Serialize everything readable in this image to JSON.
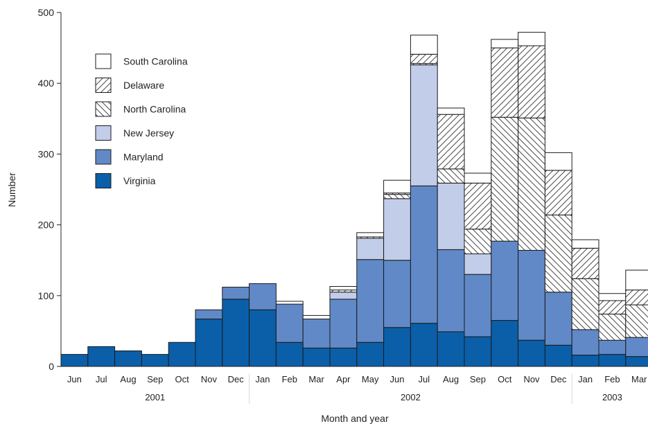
{
  "chart_data": {
    "type": "bar",
    "stacked": true,
    "ylabel": "Number",
    "xlabel": "Month and year",
    "ylim": [
      0,
      500
    ],
    "yticks": [
      0,
      100,
      200,
      300,
      400,
      500
    ],
    "grid": false,
    "legend_position": "top-left",
    "categories": [
      "Jun",
      "Jul",
      "Aug",
      "Sep",
      "Oct",
      "Nov",
      "Dec",
      "Jan",
      "Feb",
      "Mar",
      "Apr",
      "May",
      "Jun",
      "Jul",
      "Aug",
      "Sep",
      "Oct",
      "Nov",
      "Dec",
      "Jan",
      "Feb",
      "Mar"
    ],
    "year_groups": [
      {
        "label": "2001",
        "start": 0,
        "end": 6
      },
      {
        "label": "2002",
        "start": 7,
        "end": 18
      },
      {
        "label": "2003",
        "start": 19,
        "end": 21
      }
    ],
    "series": [
      {
        "name": "Virginia",
        "color": "#0a5fa8",
        "pattern": "solid",
        "values": [
          17,
          28,
          22,
          17,
          34,
          67,
          95,
          80,
          34,
          26,
          26,
          34,
          55,
          61,
          49,
          42,
          65,
          37,
          30,
          16,
          17,
          14
        ]
      },
      {
        "name": "Maryland",
        "color": "#6189c7",
        "pattern": "solid",
        "values": [
          0,
          0,
          0,
          0,
          0,
          13,
          17,
          37,
          54,
          41,
          69,
          117,
          95,
          194,
          116,
          88,
          112,
          127,
          75,
          36,
          20,
          27
        ]
      },
      {
        "name": "New Jersey",
        "color": "#c2cde9",
        "pattern": "solid",
        "values": [
          0,
          0,
          0,
          0,
          0,
          0,
          0,
          0,
          0,
          0,
          10,
          30,
          87,
          171,
          94,
          29,
          0,
          0,
          0,
          0,
          0,
          0
        ]
      },
      {
        "name": "North Carolina",
        "color": "#ffffff",
        "pattern": "hatch-back",
        "values": [
          0,
          0,
          0,
          0,
          0,
          0,
          0,
          0,
          0,
          0,
          0,
          0,
          6,
          2,
          20,
          35,
          175,
          187,
          109,
          72,
          37,
          46
        ]
      },
      {
        "name": "Delaware",
        "color": "#ffffff",
        "pattern": "hatch-forward",
        "values": [
          0,
          0,
          0,
          0,
          0,
          0,
          0,
          0,
          0,
          0,
          3,
          2,
          2,
          13,
          77,
          65,
          98,
          102,
          63,
          43,
          19,
          21
        ]
      },
      {
        "name": "South Carolina",
        "color": "#ffffff",
        "pattern": "solid",
        "values": [
          0,
          0,
          0,
          0,
          0,
          0,
          0,
          0,
          4,
          5,
          5,
          6,
          18,
          27,
          9,
          14,
          12,
          19,
          25,
          12,
          10,
          28
        ]
      }
    ],
    "legend_order": [
      "South Carolina",
      "Delaware",
      "North Carolina",
      "New Jersey",
      "Maryland",
      "Virginia"
    ]
  }
}
